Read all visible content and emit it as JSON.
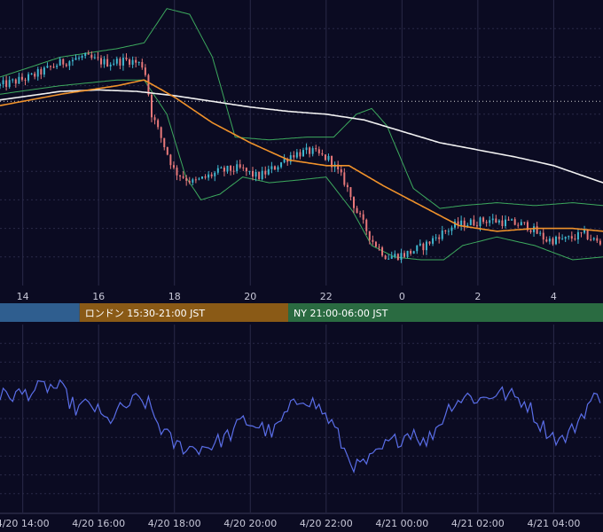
{
  "chart_data": [
    {
      "type": "candlestick",
      "title": "",
      "grid": true,
      "colors": {
        "background": "#0b0b22",
        "grid": "#2a2a48",
        "candle_up": "#3fb8d0",
        "candle_down": "#e8787a",
        "bollinger": "#3daa5e",
        "ma_short": "#f0922b",
        "ma_long": "#f2f2f2",
        "reference_line": "#d0d0d0"
      },
      "x_ticks": [
        "14",
        "16",
        "18",
        "20",
        "22",
        "0",
        "2",
        "4"
      ],
      "x_tick_hours": [
        14,
        16,
        18,
        20,
        22,
        24,
        26,
        28
      ],
      "x_range_hours": [
        13.4,
        29.3
      ],
      "ylim": [
        0,
        100
      ],
      "reference_value": 64.5,
      "close_anchors": [
        [
          13.4,
          70
        ],
        [
          14.2,
          73
        ],
        [
          15.0,
          78
        ],
        [
          15.6,
          80
        ],
        [
          16.2,
          78
        ],
        [
          16.8,
          79
        ],
        [
          17.2,
          77
        ],
        [
          17.4,
          60
        ],
        [
          17.7,
          50
        ],
        [
          18.0,
          40
        ],
        [
          18.5,
          36
        ],
        [
          19.2,
          40
        ],
        [
          19.7,
          41
        ],
        [
          20.2,
          38
        ],
        [
          20.6,
          41
        ],
        [
          21.1,
          46
        ],
        [
          21.6,
          47
        ],
        [
          22.1,
          44
        ],
        [
          22.5,
          36
        ],
        [
          22.8,
          26
        ],
        [
          23.2,
          16
        ],
        [
          23.6,
          10
        ],
        [
          24.1,
          11
        ],
        [
          24.6,
          14
        ],
        [
          25.0,
          18
        ],
        [
          25.4,
          21
        ],
        [
          25.8,
          22
        ],
        [
          26.3,
          23
        ],
        [
          26.8,
          22
        ],
        [
          27.3,
          21
        ],
        [
          27.8,
          16
        ],
        [
          28.3,
          16
        ],
        [
          28.8,
          18
        ],
        [
          29.3,
          14
        ]
      ],
      "ma_short_anchors": [
        [
          13.4,
          63
        ],
        [
          15.0,
          67
        ],
        [
          16.5,
          70
        ],
        [
          17.2,
          72
        ],
        [
          18.0,
          66
        ],
        [
          19.0,
          57
        ],
        [
          20.0,
          50
        ],
        [
          21.0,
          44
        ],
        [
          22.0,
          42
        ],
        [
          22.6,
          42
        ],
        [
          23.5,
          35
        ],
        [
          24.5,
          28
        ],
        [
          25.5,
          21
        ],
        [
          26.5,
          19
        ],
        [
          27.5,
          20
        ],
        [
          28.5,
          20
        ],
        [
          29.3,
          19
        ]
      ],
      "ma_long_anchors": [
        [
          13.4,
          65
        ],
        [
          15.0,
          68
        ],
        [
          16.0,
          68.5
        ],
        [
          17.0,
          68
        ],
        [
          18.0,
          66.5
        ],
        [
          19.0,
          64.5
        ],
        [
          20.0,
          62.5
        ],
        [
          21.0,
          61
        ],
        [
          22.0,
          60
        ],
        [
          23.0,
          58
        ],
        [
          24.0,
          54
        ],
        [
          25.0,
          50
        ],
        [
          26.0,
          47.5
        ],
        [
          27.0,
          45
        ],
        [
          28.0,
          42
        ],
        [
          29.3,
          36
        ]
      ],
      "bollinger_upper_anchors": [
        [
          13.4,
          73
        ],
        [
          15.0,
          80
        ],
        [
          16.5,
          83
        ],
        [
          17.2,
          85
        ],
        [
          17.8,
          97
        ],
        [
          18.4,
          95
        ],
        [
          19.0,
          80
        ],
        [
          19.6,
          52
        ],
        [
          20.5,
          51
        ],
        [
          21.5,
          52
        ],
        [
          22.2,
          52
        ],
        [
          22.8,
          60
        ],
        [
          23.2,
          62
        ],
        [
          23.6,
          56
        ],
        [
          24.3,
          34
        ],
        [
          25.0,
          27
        ],
        [
          25.6,
          28
        ],
        [
          26.5,
          29
        ],
        [
          27.5,
          28
        ],
        [
          28.5,
          29
        ],
        [
          29.3,
          28
        ]
      ],
      "bollinger_lower_anchors": [
        [
          13.4,
          67
        ],
        [
          15.0,
          70
        ],
        [
          16.5,
          72
        ],
        [
          17.2,
          72
        ],
        [
          17.8,
          60
        ],
        [
          18.3,
          38
        ],
        [
          18.7,
          30
        ],
        [
          19.2,
          32
        ],
        [
          19.8,
          38
        ],
        [
          20.5,
          36
        ],
        [
          21.3,
          37
        ],
        [
          22.0,
          38
        ],
        [
          22.7,
          26
        ],
        [
          23.2,
          14
        ],
        [
          23.8,
          10
        ],
        [
          24.5,
          9
        ],
        [
          25.1,
          9
        ],
        [
          25.6,
          14
        ],
        [
          26.5,
          17
        ],
        [
          27.5,
          14
        ],
        [
          28.5,
          9
        ],
        [
          29.3,
          10
        ]
      ]
    },
    {
      "type": "sessions",
      "items": [
        {
          "label": "",
          "start_hour": 13.4,
          "end_hour": 15.5,
          "color": "#2f5e8f"
        },
        {
          "label": "ロンドン 15:30-21:00 JST",
          "start_hour": 15.5,
          "end_hour": 21.0,
          "color": "#8a5a16"
        },
        {
          "label": "NY 21:00-06:00 JST",
          "start_hour": 21.0,
          "end_hour": 29.3,
          "color": "#2a6b41"
        }
      ]
    },
    {
      "type": "line",
      "title": "",
      "grid": true,
      "ylim": [
        0,
        100
      ],
      "color": "#5a6ee8",
      "x_ticks": [
        "4/20 14:00",
        "4/20 16:00",
        "4/20 18:00",
        "4/20 20:00",
        "4/20 22:00",
        "4/21 00:00",
        "4/21 02:00",
        "4/21 04:00"
      ],
      "x_tick_hours": [
        14,
        16,
        18,
        20,
        22,
        24,
        26,
        28
      ],
      "series_anchors": [
        [
          13.4,
          62
        ],
        [
          14.0,
          63
        ],
        [
          14.6,
          67
        ],
        [
          15.0,
          66
        ],
        [
          15.4,
          55
        ],
        [
          15.8,
          58
        ],
        [
          16.2,
          48
        ],
        [
          16.6,
          55
        ],
        [
          17.0,
          60
        ],
        [
          17.3,
          58
        ],
        [
          17.6,
          46
        ],
        [
          18.0,
          36
        ],
        [
          18.5,
          34
        ],
        [
          19.0,
          36
        ],
        [
          19.5,
          42
        ],
        [
          19.8,
          49
        ],
        [
          20.2,
          46
        ],
        [
          20.6,
          42
        ],
        [
          21.0,
          54
        ],
        [
          21.4,
          62
        ],
        [
          21.8,
          56
        ],
        [
          22.2,
          46
        ],
        [
          22.5,
          32
        ],
        [
          22.8,
          24
        ],
        [
          23.2,
          28
        ],
        [
          23.6,
          36
        ],
        [
          24.0,
          40
        ],
        [
          24.3,
          44
        ],
        [
          24.6,
          36
        ],
        [
          25.0,
          48
        ],
        [
          25.3,
          58
        ],
        [
          25.7,
          62
        ],
        [
          26.1,
          60
        ],
        [
          26.5,
          64
        ],
        [
          26.9,
          62
        ],
        [
          27.3,
          58
        ],
        [
          27.6,
          48
        ],
        [
          27.9,
          42
        ],
        [
          28.2,
          38
        ],
        [
          28.5,
          44
        ],
        [
          28.8,
          54
        ],
        [
          29.0,
          60
        ],
        [
          29.3,
          62
        ]
      ]
    }
  ]
}
